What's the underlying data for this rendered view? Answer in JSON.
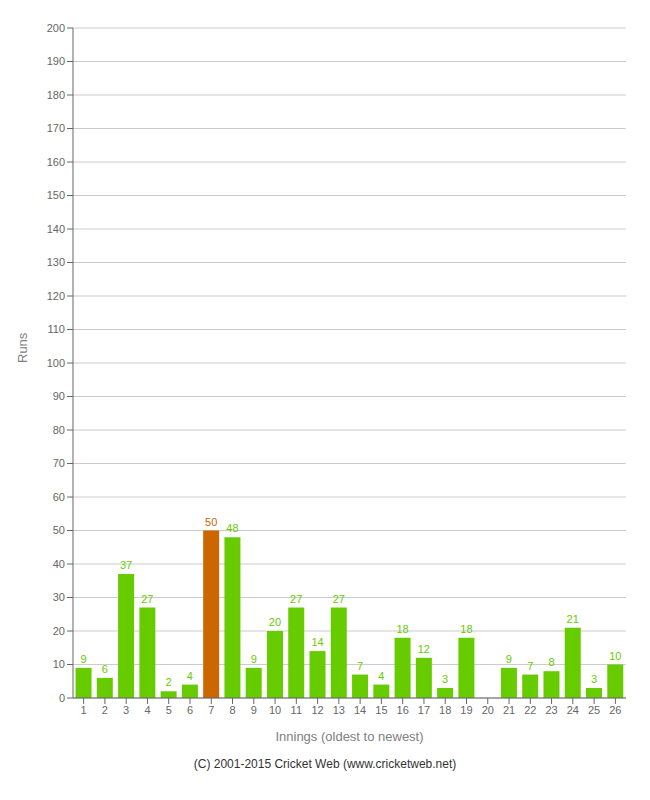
{
  "chart_data": {
    "type": "bar",
    "xlabel": "Innings (oldest to newest)",
    "ylabel": "Runs",
    "categories": [
      "1",
      "2",
      "3",
      "4",
      "5",
      "6",
      "7",
      "8",
      "9",
      "10",
      "11",
      "12",
      "13",
      "14",
      "15",
      "16",
      "17",
      "18",
      "19",
      "20",
      "21",
      "22",
      "23",
      "24",
      "25",
      "26"
    ],
    "values": [
      9,
      6,
      37,
      27,
      2,
      4,
      50,
      48,
      9,
      20,
      27,
      14,
      27,
      7,
      4,
      18,
      12,
      3,
      18,
      0,
      9,
      7,
      8,
      21,
      3,
      10
    ],
    "colors": [
      "#66cc00",
      "#66cc00",
      "#66cc00",
      "#66cc00",
      "#66cc00",
      "#66cc00",
      "#cc6600",
      "#66cc00",
      "#66cc00",
      "#66cc00",
      "#66cc00",
      "#66cc00",
      "#66cc00",
      "#66cc00",
      "#66cc00",
      "#66cc00",
      "#66cc00",
      "#66cc00",
      "#66cc00",
      "#66cc00",
      "#66cc00",
      "#66cc00",
      "#66cc00",
      "#66cc00",
      "#66cc00",
      "#66cc00"
    ],
    "ylim": [
      0,
      200
    ],
    "yticks": [
      0,
      10,
      20,
      30,
      40,
      50,
      60,
      70,
      80,
      90,
      100,
      110,
      120,
      130,
      140,
      150,
      160,
      170,
      180,
      190,
      200
    ],
    "grid": true,
    "data_labels": true,
    "annotations": [
      "(C) 2001-2015 Cricket Web (www.cricketweb.net)"
    ]
  }
}
